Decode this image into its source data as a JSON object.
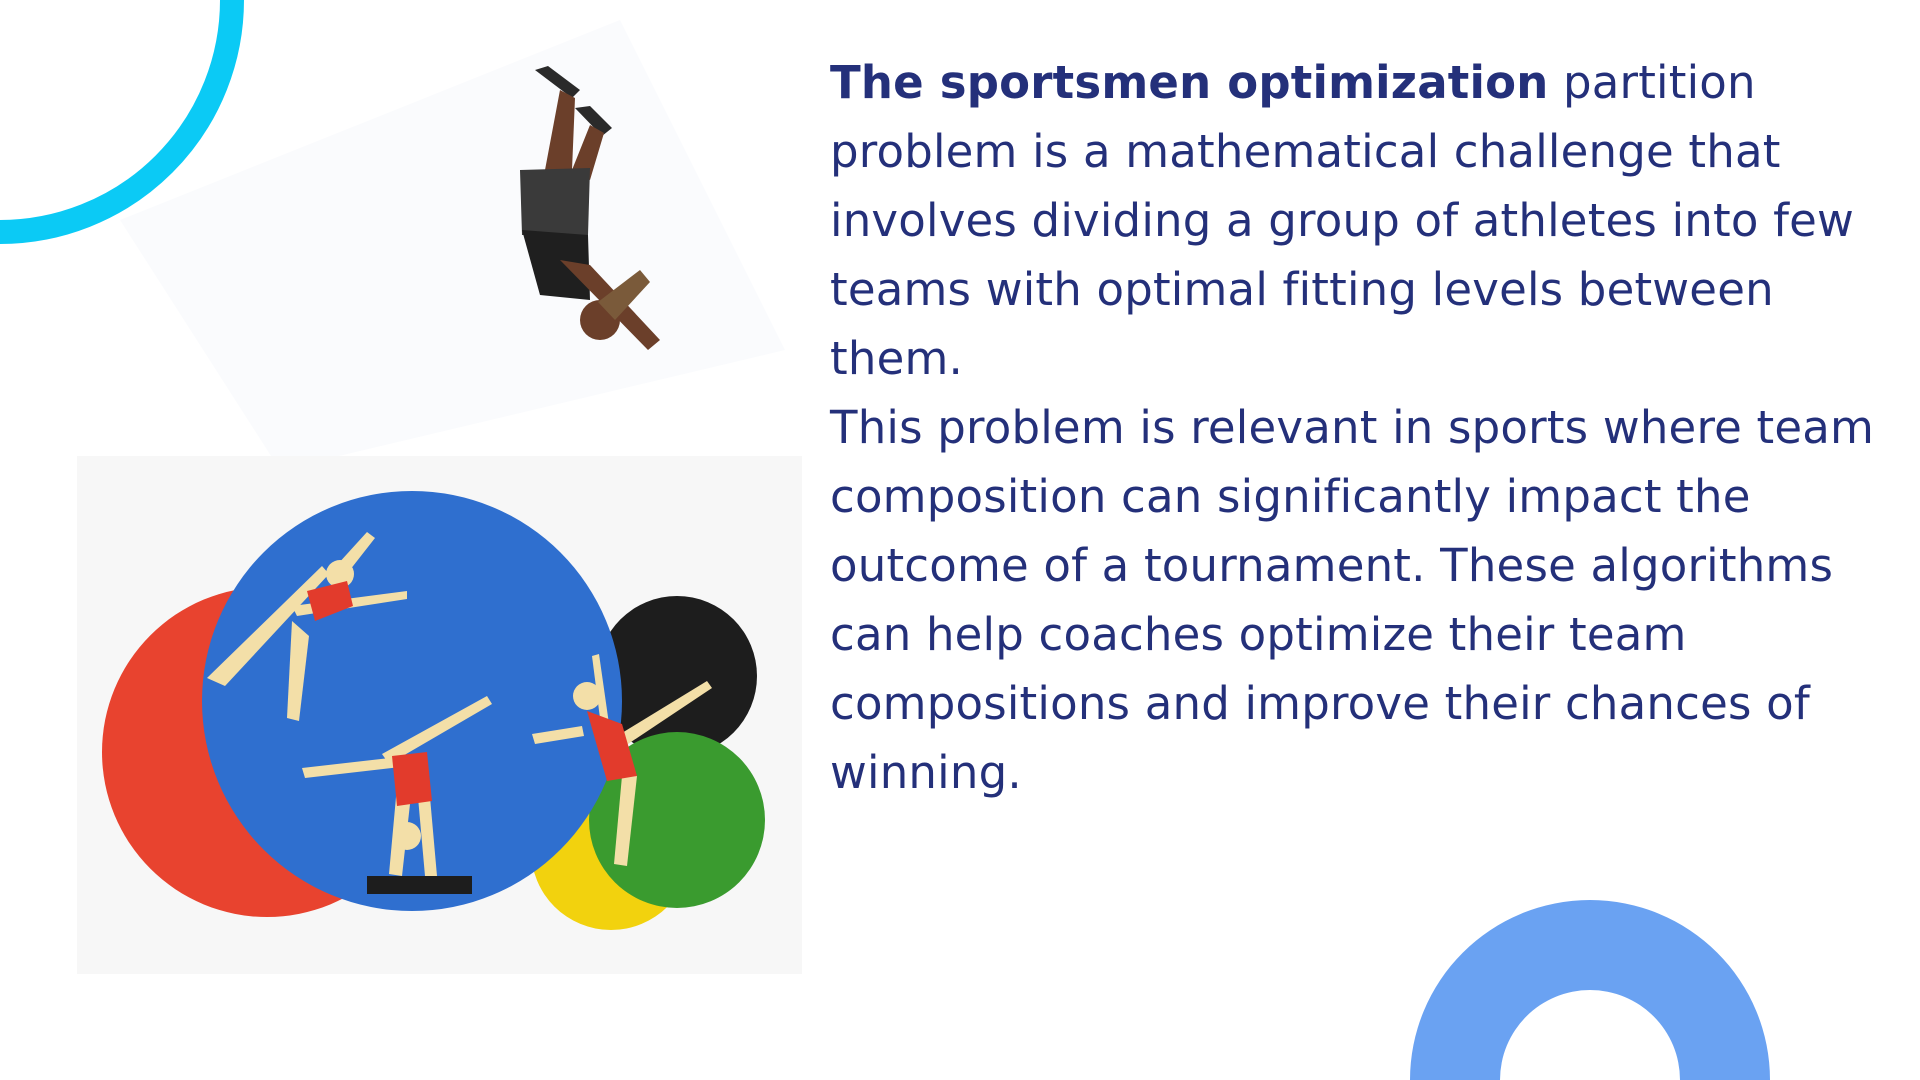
{
  "content": {
    "paragraph1": {
      "bold_lead": "The sportsmen optimization",
      "rest": " partition problem is a mathematical challenge that involves dividing a group of athletes into few teams with optimal fitting levels between them."
    },
    "paragraph2": "This problem is relevant in sports where team composition can significantly impact the outcome of a tournament. These algorithms can help coaches optimize their team compositions and improve their chances of winning."
  },
  "colors": {
    "text": "#24307a",
    "accent_cyan": "#0bcaf5",
    "accent_blue": "#6aa2f2",
    "paper_blue": "#2f6fcf",
    "paper_red": "#e8432f",
    "paper_black": "#1d1d1d",
    "paper_green": "#3a9b2f",
    "paper_yellow": "#f2d20e",
    "figure_tan": "#f3dfa8",
    "figure_red": "#e23b2c"
  },
  "icons": {
    "top_left": "cyan-arc-decoration",
    "bottom_right": "blue-semicircle-ring-decoration"
  }
}
